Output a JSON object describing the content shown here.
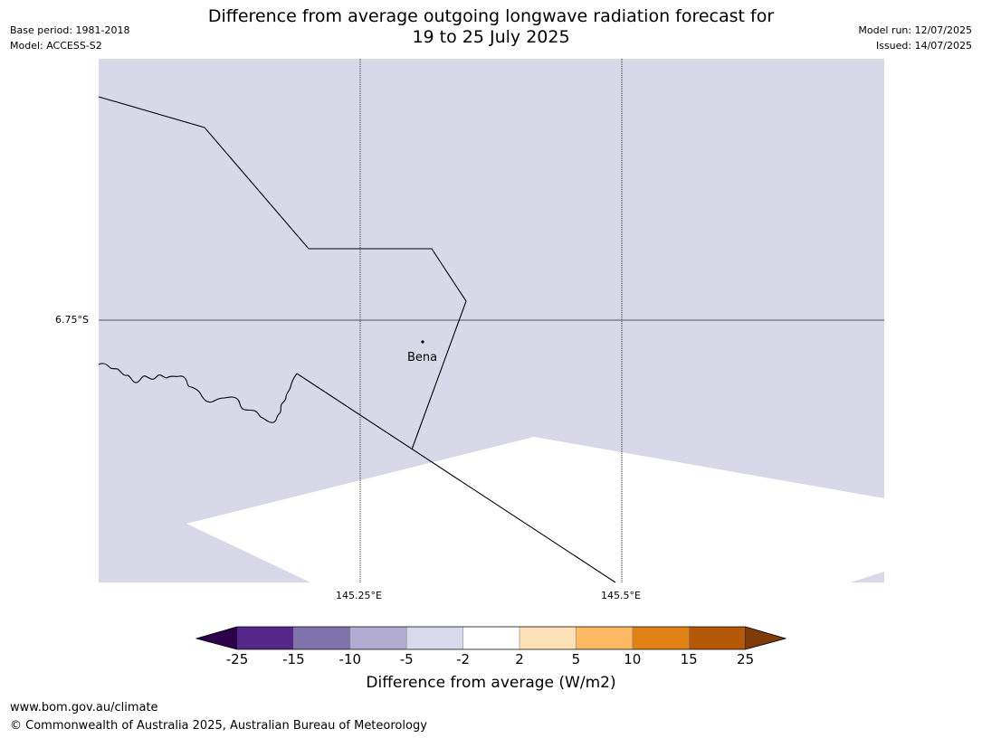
{
  "header": {
    "title_line1": "Difference from average outgoing longwave radiation forecast for",
    "title_line2": "19 to 25 July 2025",
    "base_period": "Base period: 1981-2018",
    "model": "Model: ACCESS-S2",
    "model_run": "Model run: 12/07/2025",
    "issued": "Issued: 14/07/2025"
  },
  "map": {
    "place_label": "Bena",
    "lat_label": "6.75°S",
    "lon_labels": [
      "145.25°E",
      "145.5°E"
    ],
    "colors": {
      "category_light_purple": "#d8d8e9",
      "category_white": "#ffffff"
    }
  },
  "colorbar": {
    "tick_labels": [
      "-25",
      "-15",
      "-10",
      "-5",
      "-2",
      "2",
      "5",
      "10",
      "15",
      "25"
    ],
    "label": "Difference from average (W/m2)",
    "extend_colors": {
      "low": "#2d004b",
      "high": "#7f3b08"
    },
    "colors": [
      "#542788",
      "#8073ac",
      "#b2abd2",
      "#d8daeb",
      "#ffffff",
      "#fee0b6",
      "#fdb863",
      "#e08214",
      "#b35806"
    ]
  },
  "footer": {
    "url": "www.bom.gov.au/climate",
    "copyright": "© Commonwealth of Australia 2025, Australian Bureau of Meteorology"
  }
}
